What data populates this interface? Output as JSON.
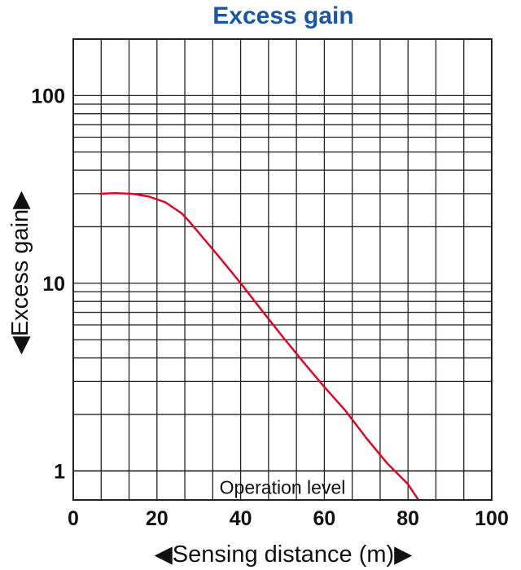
{
  "chart_data": {
    "type": "line",
    "title": "Excess gain",
    "xlabel": "◀Sensing distance (m)▶",
    "ylabel": "◀Excess gain▶",
    "xlim": [
      0,
      100
    ],
    "ylim": [
      0.7,
      200
    ],
    "yscale": "log",
    "grid": true,
    "x_ticks": [
      0,
      20,
      40,
      60,
      80,
      100
    ],
    "x_tick_labels": [
      "0",
      "20",
      "40",
      "60",
      "80",
      "100"
    ],
    "y_ticks": [
      1,
      10,
      100
    ],
    "y_tick_labels": [
      "1",
      "10",
      "100"
    ],
    "annotations": [
      {
        "text": "Operation level",
        "y": 1
      }
    ],
    "series": [
      {
        "color": "#e1001e",
        "x": [
          6.5,
          10,
          14,
          18,
          22,
          26,
          28,
          35,
          40,
          45,
          50,
          55,
          60,
          65,
          70,
          75,
          80,
          82.5
        ],
        "y": [
          30,
          30.2,
          30,
          29,
          27,
          23.5,
          21,
          13.7,
          10,
          7.2,
          5.2,
          3.8,
          2.8,
          2.1,
          1.5,
          1.1,
          0.85,
          0.7
        ]
      }
    ]
  }
}
